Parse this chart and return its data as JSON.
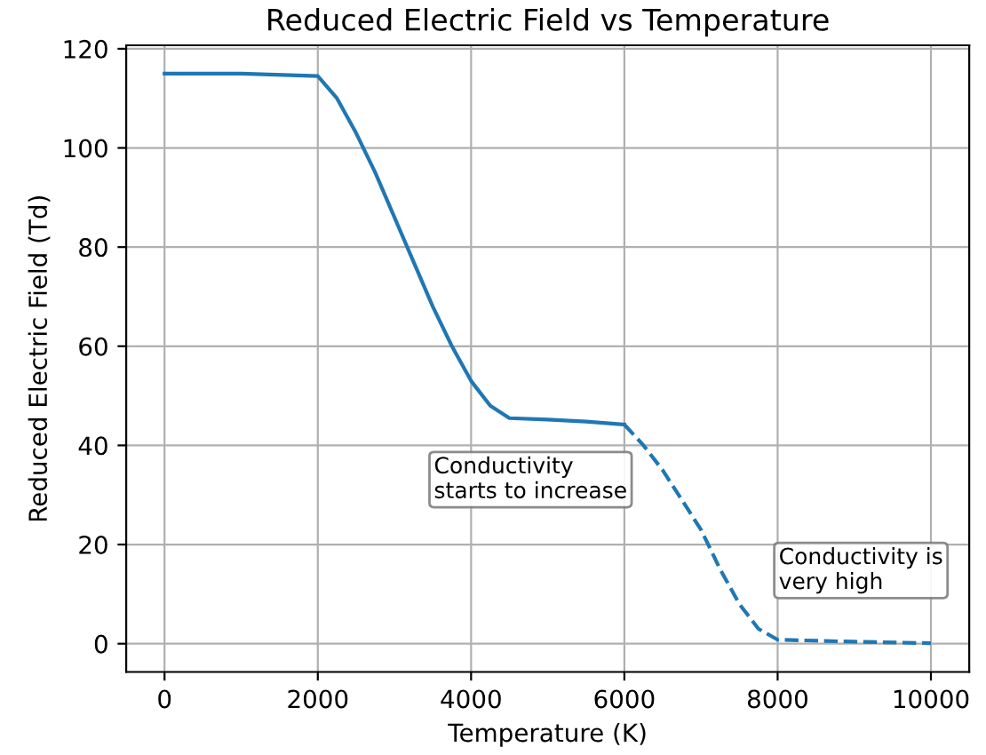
{
  "chart_data": {
    "type": "line",
    "title": "Reduced Electric Field vs Temperature",
    "xlabel": "Temperature (K)",
    "ylabel": "Reduced Electric Field (Td)",
    "series": [
      {
        "color": "#1f77b4",
        "line_style": "solid",
        "x": [
          0,
          1000,
          2000,
          2250,
          2500,
          2750,
          3000,
          3250,
          3500,
          3750,
          4000,
          4250,
          4500,
          5000,
          5500,
          6000
        ],
        "values": [
          115,
          115,
          114.5,
          110,
          103,
          95,
          86,
          77,
          68,
          60,
          53,
          48,
          45.5,
          45.2,
          44.8,
          44.2
        ]
      },
      {
        "color": "#1f77b4",
        "line_style": "dashed",
        "x": [
          6000,
          6250,
          6500,
          6750,
          7000,
          7250,
          7500,
          7750,
          8000,
          9000,
          10000
        ],
        "values": [
          44.2,
          40,
          35,
          29,
          23,
          15,
          8,
          3,
          0.8,
          0.4,
          0.1
        ]
      }
    ],
    "annotations": [
      "Conductivity\nstarts to increase",
      "Conductivity is\nvery high"
    ],
    "xlim": [
      -500,
      10500
    ],
    "ylim": [
      -5.7,
      120.7
    ],
    "xticks": [
      0,
      2000,
      4000,
      6000,
      8000,
      10000
    ],
    "yticks": [
      0,
      20,
      40,
      60,
      80,
      100,
      120
    ],
    "grid": true,
    "legend": false
  }
}
